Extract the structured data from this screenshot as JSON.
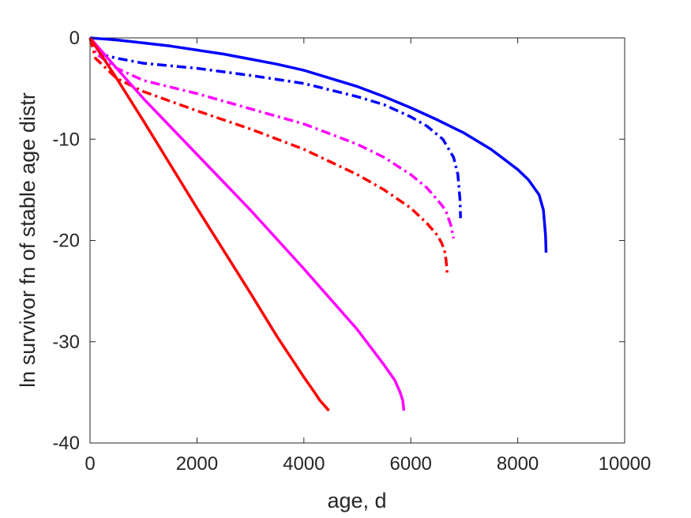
{
  "chart_data": {
    "type": "line",
    "title": "",
    "xlabel": "age, d",
    "ylabel": "ln survivor fn of stable age distr",
    "xlim": [
      0,
      10000
    ],
    "ylim": [
      -40,
      0
    ],
    "xticks": [
      0,
      2000,
      4000,
      6000,
      8000,
      10000
    ],
    "yticks": [
      0,
      -10,
      -20,
      -30,
      -40
    ],
    "xtick_labels": [
      "0",
      "2000",
      "4000",
      "6000",
      "8000",
      "10000"
    ],
    "ytick_labels": [
      "0",
      "-10",
      "-20",
      "-30",
      "-40"
    ],
    "grid": false,
    "legend": "none",
    "series": [
      {
        "color": "#0000ff",
        "linestyle": "solid",
        "x": [
          0,
          500,
          1000,
          1500,
          2000,
          2500,
          3000,
          3500,
          4000,
          4500,
          5000,
          5500,
          6000,
          6500,
          7000,
          7500,
          8000,
          8200,
          8400,
          8480,
          8520,
          8530
        ],
        "y": [
          0,
          -0.2,
          -0.5,
          -0.8,
          -1.2,
          -1.6,
          -2.1,
          -2.6,
          -3.2,
          -4.0,
          -4.8,
          -5.8,
          -6.9,
          -8.1,
          -9.4,
          -11.0,
          -13.0,
          -14.0,
          -15.5,
          -17.0,
          -19.5,
          -21.2
        ]
      },
      {
        "color": "#0000ff",
        "linestyle": "dashdot",
        "x": [
          0,
          100,
          500,
          1000,
          2000,
          3000,
          4000,
          5000,
          5500,
          6000,
          6300,
          6600,
          6800,
          6880,
          6920,
          6930
        ],
        "y": [
          0,
          -1.5,
          -2.0,
          -2.5,
          -3.0,
          -3.7,
          -4.5,
          -5.8,
          -6.6,
          -7.8,
          -8.7,
          -10.0,
          -11.8,
          -13.5,
          -16.0,
          -17.8
        ]
      },
      {
        "color": "#ff00ff",
        "linestyle": "dashdot",
        "x": [
          0,
          100,
          500,
          1000,
          2000,
          3000,
          4000,
          4500,
          5000,
          5500,
          6000,
          6300,
          6500,
          6650,
          6750,
          6800
        ],
        "y": [
          0,
          -1.5,
          -3.0,
          -4.2,
          -5.5,
          -7.0,
          -8.5,
          -9.5,
          -10.5,
          -11.8,
          -13.5,
          -14.8,
          -16.0,
          -17.0,
          -18.5,
          -19.8
        ]
      },
      {
        "color": "#ff0000",
        "linestyle": "dashdot",
        "x": [
          0,
          100,
          500,
          1000,
          2000,
          3000,
          4000,
          5000,
          5500,
          6000,
          6300,
          6500,
          6580,
          6630,
          6660,
          6680
        ],
        "y": [
          0,
          -2.0,
          -4.0,
          -5.3,
          -7.2,
          -9.0,
          -11.0,
          -13.5,
          -15.0,
          -16.8,
          -18.3,
          -19.5,
          -20.3,
          -21.0,
          -22.0,
          -23.2
        ]
      },
      {
        "color": "#ff00ff",
        "linestyle": "solid",
        "x": [
          0,
          500,
          1000,
          2000,
          3000,
          4000,
          5000,
          5500,
          5700,
          5800,
          5850,
          5860,
          5870
        ],
        "y": [
          0,
          -3.0,
          -6.0,
          -11.5,
          -17.0,
          -22.8,
          -28.8,
          -32.3,
          -33.8,
          -35.0,
          -35.8,
          -36.3,
          -36.8
        ]
      },
      {
        "color": "#ff0000",
        "linestyle": "solid",
        "x": [
          0,
          500,
          1000,
          2000,
          3000,
          3500,
          4000,
          4200,
          4300,
          4400,
          4450,
          4470
        ],
        "y": [
          0,
          -4.0,
          -8.2,
          -16.8,
          -25.2,
          -29.5,
          -33.5,
          -35.0,
          -35.8,
          -36.4,
          -36.7,
          -36.8
        ]
      }
    ]
  }
}
